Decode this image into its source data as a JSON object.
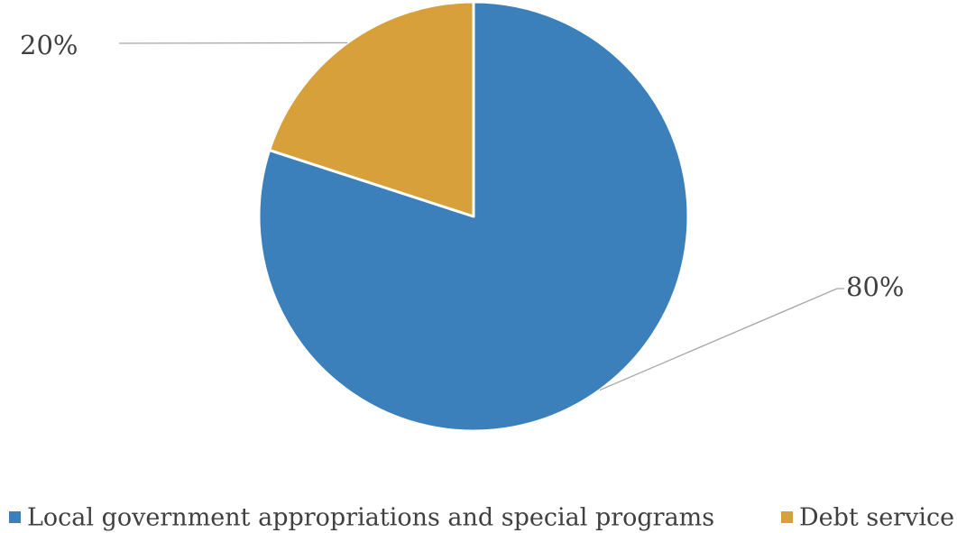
{
  "chart_data": {
    "type": "pie",
    "title": "",
    "slices": [
      {
        "label": "Local government appropriations and special programs",
        "value": 80,
        "display": "80%",
        "color": "#3b80bb"
      },
      {
        "label": "Debt service",
        "value": 20,
        "display": "20%",
        "color": "#d7a03a"
      }
    ],
    "legend_position": "bottom",
    "data_labels": "outside with leader lines"
  }
}
